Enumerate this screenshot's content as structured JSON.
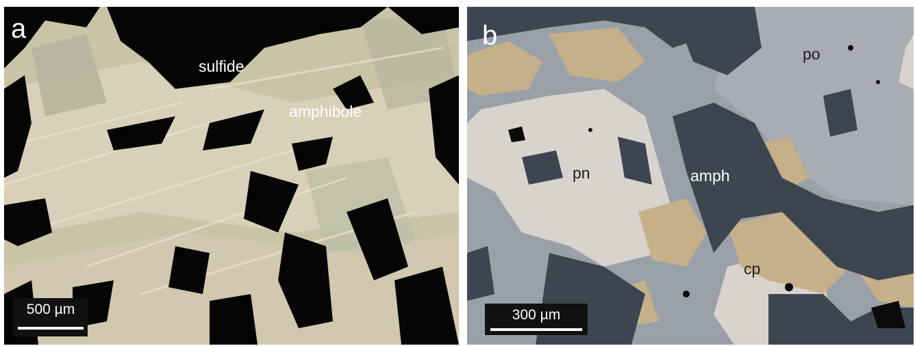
{
  "figure": {
    "panel_a": {
      "letter": "a",
      "labels": {
        "sulfide": "sulfide",
        "amphibole": "amphibole"
      },
      "scale_bar": "500 µm",
      "colors": {
        "silicate": "#c9c3a8",
        "sulfide": "#050505",
        "pale": "#e6d2b8"
      }
    },
    "panel_b": {
      "letter": "b",
      "labels": {
        "po": "po",
        "pn": "pn",
        "amph": "amph",
        "cp": "cp"
      },
      "scale_bar": "300 µm",
      "colors": {
        "pyrrhotite": "#a9acb3",
        "pentlandite": "#d8d3cc",
        "amphibole": "#3d4551",
        "chalcopyrite": "#c6b089",
        "matrix": "#9aa0a8"
      }
    }
  }
}
